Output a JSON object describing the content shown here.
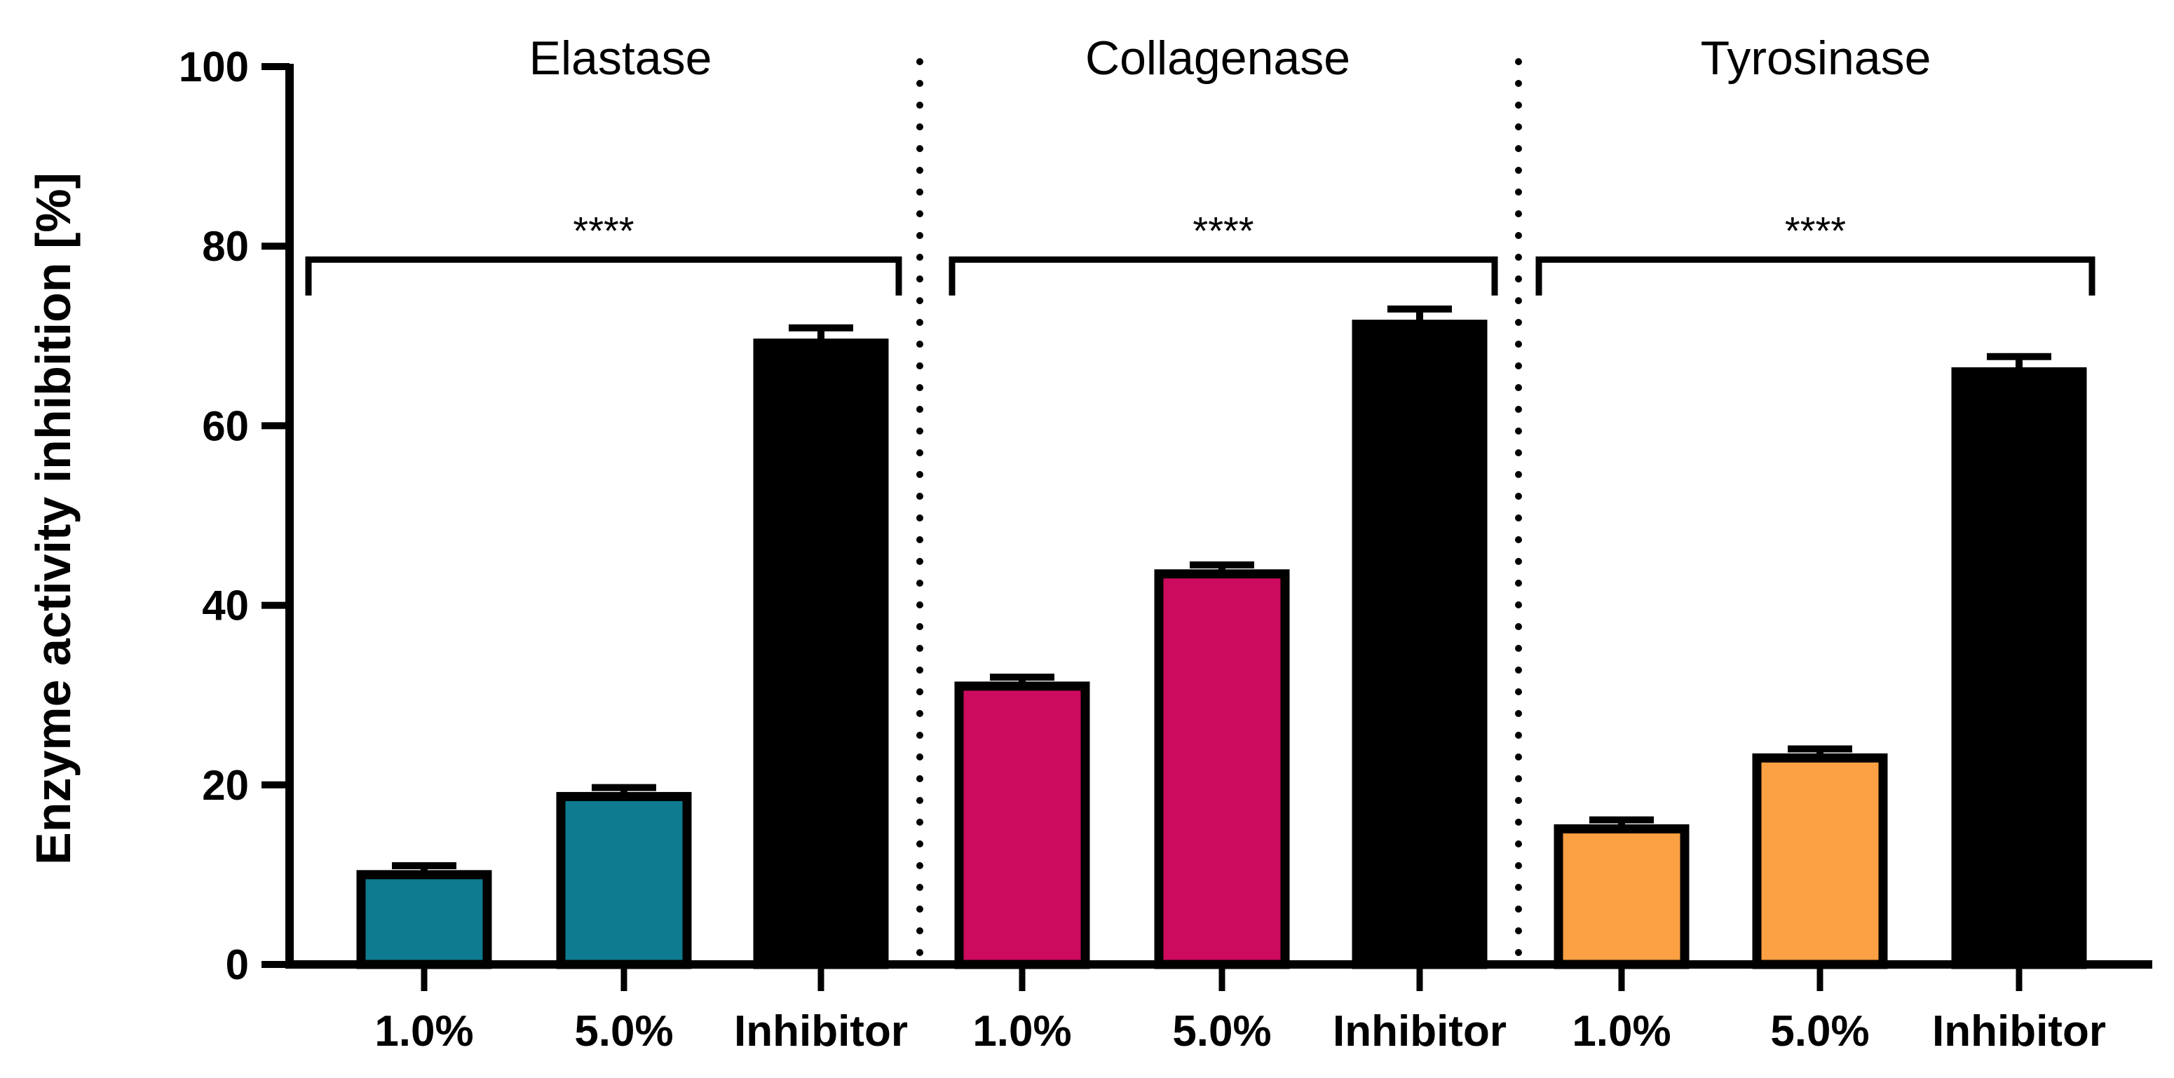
{
  "chart_data": {
    "type": "bar",
    "ylabel": "Enzyme activity inhibition [%]",
    "ylim": [
      0,
      100
    ],
    "yticks": [
      0,
      20,
      40,
      60,
      80,
      100
    ],
    "ytick_labels": [
      "0",
      "20",
      "40",
      "60",
      "80",
      "100"
    ],
    "groups": [
      {
        "title": "Elastase",
        "significance": "****",
        "categories": [
          "1.0%",
          "5.0%",
          "Inhibitor"
        ],
        "values": [
          10,
          18.7,
          69.2
        ],
        "errors": [
          1.0,
          1.0,
          1.7
        ],
        "colors": [
          "#0f7b90",
          "#0f7b90",
          "#000000"
        ]
      },
      {
        "title": "Collagenase",
        "significance": "****",
        "categories": [
          "1.0%",
          "5.0%",
          "Inhibitor"
        ],
        "values": [
          31,
          43.5,
          71.3
        ],
        "errors": [
          1.0,
          1.0,
          1.7
        ],
        "colors": [
          "#cc0a5e",
          "#cc0a5e",
          "#000000"
        ]
      },
      {
        "title": "Tyrosinase",
        "significance": "****",
        "categories": [
          "1.0%",
          "5.0%",
          "Inhibitor"
        ],
        "values": [
          15.1,
          23,
          66
        ],
        "errors": [
          1.0,
          1.0,
          1.7
        ],
        "colors": [
          "#fba043",
          "#fba043",
          "#000000"
        ]
      }
    ]
  }
}
